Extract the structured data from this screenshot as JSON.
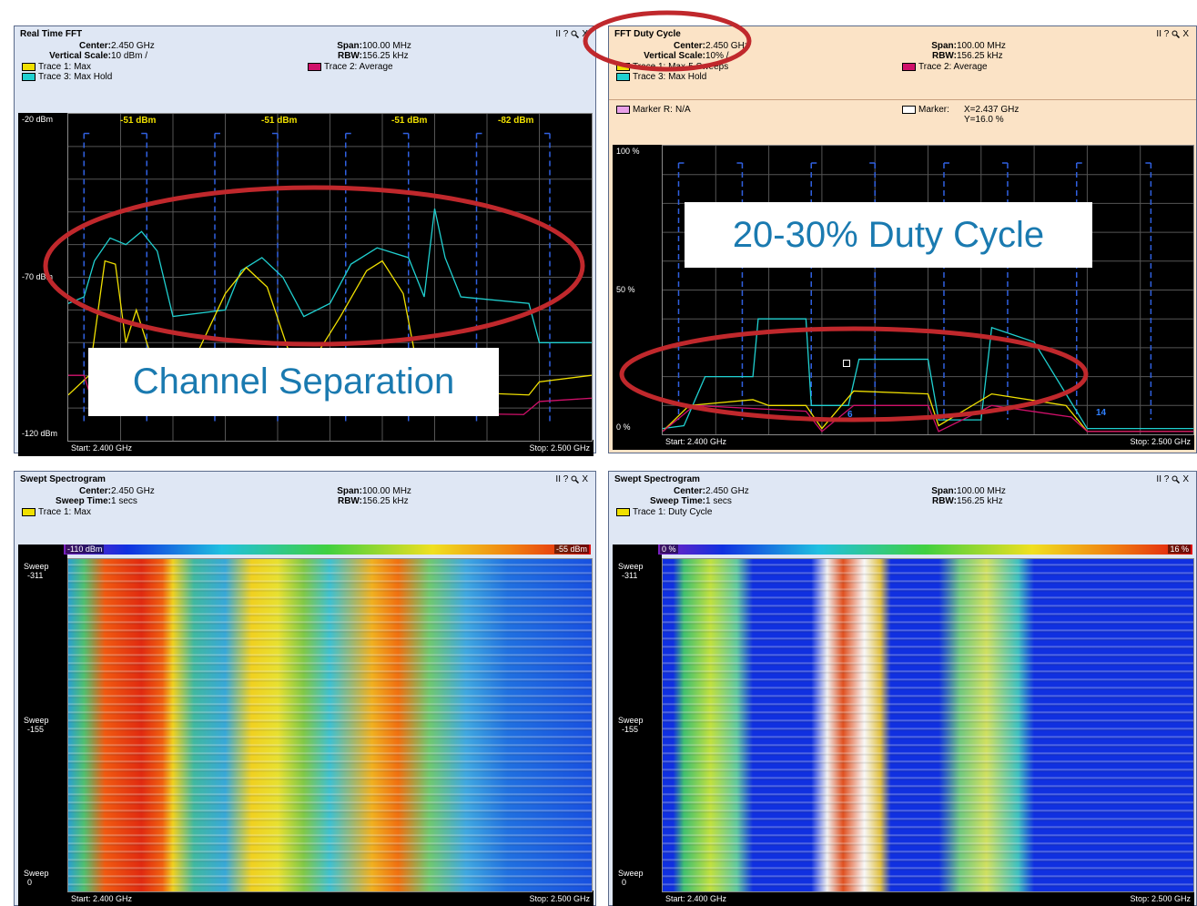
{
  "panels": [
    {
      "title": "Real Time FFT",
      "controls": "II ?",
      "close": "X",
      "fields": [
        {
          "label": "Center:",
          "value": "2.450 GHz"
        },
        {
          "label": "Span:",
          "value": "100.00 MHz"
        },
        {
          "label": "Vertical Scale:",
          "value": "10 dBm /"
        },
        {
          "label": "RBW:",
          "value": "156.25 kHz"
        }
      ],
      "legend": [
        {
          "name": "Trace 1: Max",
          "color": "#f0e000"
        },
        {
          "name": "Trace 2: Average",
          "color": "#d0106a"
        },
        {
          "name": "Trace 3: Max Hold",
          "color": "#20d0d0"
        }
      ],
      "y_labels": [
        "-20 dBm",
        "-70 dBm",
        "-120 dBm"
      ],
      "plot_labels": [
        "-51 dBm",
        "-51 dBm",
        "-51 dBm",
        "-82 dBm"
      ],
      "start": "Start: 2.400 GHz",
      "stop": "Stop: 2.500 GHz"
    },
    {
      "title": "FFT Duty Cycle",
      "controls": "II ?",
      "close": "X",
      "fields": [
        {
          "label": "Center:",
          "value": "2.450 GHz"
        },
        {
          "label": "Span:",
          "value": "100.00 MHz"
        },
        {
          "label": "Vertical Scale:",
          "value": "10% /"
        },
        {
          "label": "RBW:",
          "value": "156.25 kHz"
        }
      ],
      "legend": [
        {
          "name": "Trace 1: Max-5 Sweeps",
          "color": "#f0e000"
        },
        {
          "name": "Trace 2: Average",
          "color": "#d0106a"
        },
        {
          "name": "Trace 3: Max Hold",
          "color": "#20d0d0"
        }
      ],
      "markers": [
        {
          "label": "Marker R:",
          "color": "#e8a0e8",
          "lines": [
            "N/A"
          ]
        },
        {
          "label": "Marker:",
          "color": "#ffffff",
          "lines": [
            "X=2.437 GHz",
            "Y=16.0 %"
          ]
        }
      ],
      "y_labels": [
        "100 %",
        "50 %",
        "0 %"
      ],
      "plot_labels": [
        "6",
        "14"
      ],
      "start": "Start: 2.400 GHz",
      "stop": "Stop: 2.500 GHz"
    },
    {
      "title": "Swept Spectrogram",
      "controls": "II ?",
      "close": "X",
      "fields": [
        {
          "label": "Center:",
          "value": "2.450 GHz"
        },
        {
          "label": "Span:",
          "value": "100.00 MHz"
        },
        {
          "label": "Sweep Time:",
          "value": "1 secs"
        },
        {
          "label": "RBW:",
          "value": "156.25 kHz"
        }
      ],
      "legend": [
        {
          "name": "Trace 1: Max",
          "color": "#f0e000"
        }
      ],
      "colorbar": [
        "-110 dBm",
        "-55 dBm"
      ],
      "y_labels": [
        [
          "Sweep",
          "-311"
        ],
        [
          "Sweep",
          "-155"
        ],
        [
          "Sweep",
          "0"
        ]
      ],
      "start": "Start: 2.400 GHz",
      "stop": "Stop: 2.500 GHz"
    },
    {
      "title": "Swept Spectrogram",
      "controls": "II ?",
      "close": "X",
      "fields": [
        {
          "label": "Center:",
          "value": "2.450 GHz"
        },
        {
          "label": "Span:",
          "value": "100.00 MHz"
        },
        {
          "label": "Sweep Time:",
          "value": "1 secs"
        },
        {
          "label": "RBW:",
          "value": "156.25 kHz"
        }
      ],
      "legend": [
        {
          "name": "Trace 1: Duty Cycle",
          "color": "#f0e000"
        }
      ],
      "colorbar": [
        "0 %",
        "16 %"
      ],
      "y_labels": [
        [
          "Sweep",
          "-311"
        ],
        [
          "Sweep",
          "-155"
        ],
        [
          "Sweep",
          "0"
        ]
      ],
      "start": "Start: 2.400 GHz",
      "stop": "Stop: 2.500 GHz"
    }
  ],
  "annotations": [
    "Channel Separation",
    "20-30% Duty Cycle"
  ]
}
